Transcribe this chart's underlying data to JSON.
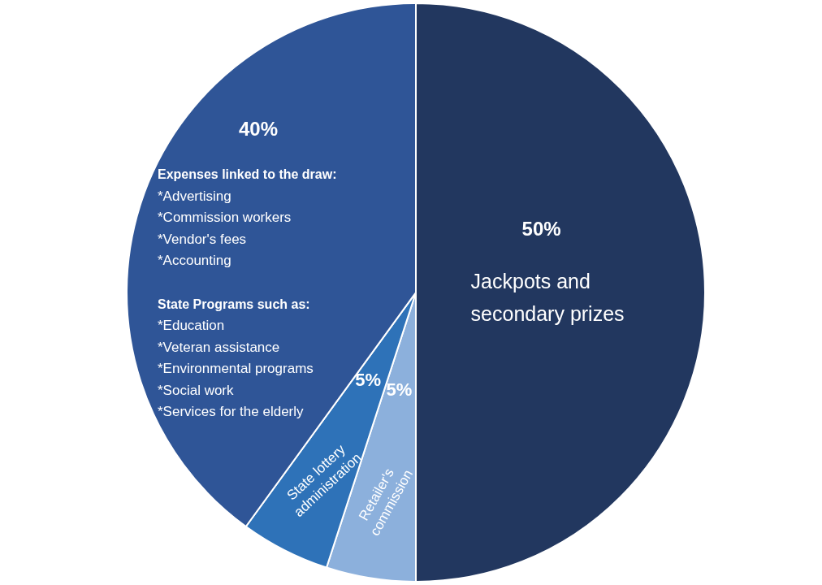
{
  "chart_data": {
    "type": "pie",
    "categories": [
      "Jackpots and\nsecondary prizes",
      "Retailer's\ncommission",
      "State lottery\nadministration",
      null
    ],
    "values": [
      50,
      5,
      5,
      40
    ],
    "value_labels": [
      "50%",
      "5%",
      "5%",
      "40%"
    ],
    "colors": [
      "#22375f",
      "#8cb0dc",
      "#2e72b8",
      "#2f5597"
    ],
    "annotations": [
      "Expenses linked to the draw:\n*Advertising\n*Commission workers\n*Vendor's fees\n*Accounting",
      "State Programs such as:\n*Education\n*Veteran assistance\n*Environmental programs\n*Social work\n*Services for the elderly"
    ]
  }
}
